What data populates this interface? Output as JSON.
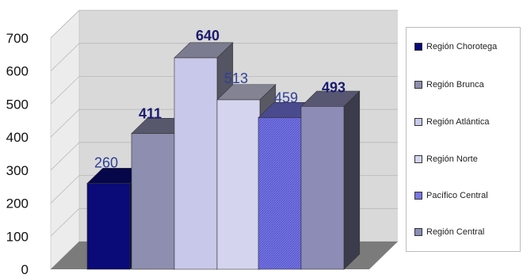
{
  "chart_data": {
    "type": "bar",
    "categories": [
      "Región Chorotega",
      "Región Brunca",
      "Región Atlántica",
      "Región Norte",
      "Pacífico Central",
      "Región Central"
    ],
    "values": [
      260,
      411,
      640,
      513,
      459,
      493
    ],
    "value_labels": [
      "260",
      "411",
      "640",
      "513",
      "459",
      "493"
    ],
    "colors": [
      "#0a0a78",
      "#8e8eb0",
      "#c8c8ea",
      "#d4d4ee",
      "#7878e6",
      "#8c8cb6"
    ],
    "label_colors": [
      "#2f3f9a",
      "#1a1a70",
      "#1a1a70",
      "#2f3f9a",
      "#2f3f9a",
      "#1a1a70"
    ],
    "ylim": [
      0,
      700
    ],
    "yticks": [
      "0",
      "100",
      "200",
      "300",
      "400",
      "500",
      "600",
      "700"
    ],
    "legend_position": "right",
    "style": "3d",
    "grid": true
  }
}
